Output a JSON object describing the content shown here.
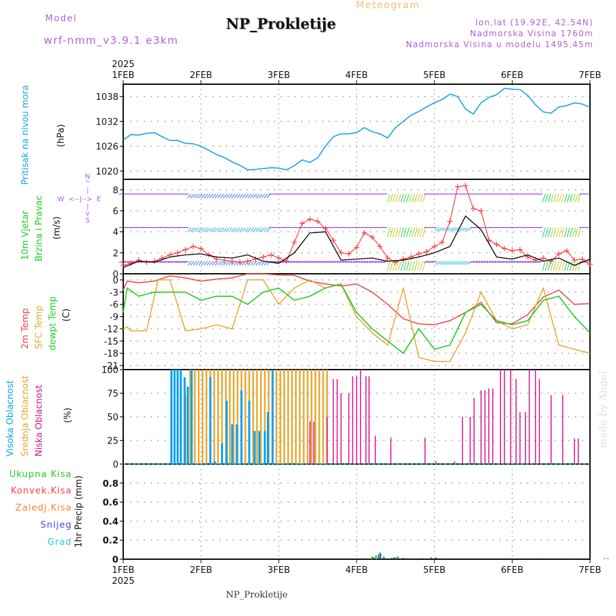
{
  "header": {
    "model_label": "Model",
    "model_name": "wrf-nmm_v3.9.1  e3km",
    "station_title": "NP_Prokletije",
    "meteogram_label": "Meteogram",
    "lonlat": "lon,lat (19.92E, 42.54N)",
    "elevation": "Nadmorska Visina 1760m",
    "model_elevation": "Nadmorska Visina u modelu 1495.45m",
    "watermark": "made by Angel",
    "footer_station": "NP_Prokletije"
  },
  "colors": {
    "pressure": "#1aa3ec",
    "wind_speed": "#ff4040",
    "wind_gust_line": "#000000",
    "temp2m": "#ee4444",
    "sfc_temp": "#e8a830",
    "dewpt": "#22cc22",
    "high_cloud": "#0aa0ee",
    "mid_cloud": "#e8a830",
    "low_cloud": "#dd1188",
    "total_precip": "#22cc22",
    "conv_precip": "#ff4040",
    "freezing_precip": "#ff8030",
    "snow": "#4040ff",
    "hail": "#22cccc",
    "purple_label": "#b25ee0"
  },
  "chart_data": [
    {
      "type": "line",
      "name": "sea-level-pressure",
      "title": "Pritisak na nivou mora",
      "ylabel": "(hPa)",
      "ylim": [
        1018,
        1041
      ],
      "yticks": [
        "1020",
        "1026",
        "1032",
        "1038"
      ],
      "ytick_values": [
        1020,
        1026,
        1032,
        1038
      ],
      "xlabel_top_year": "2025",
      "xticks": [
        "1FEB",
        "2FEB",
        "3FEB",
        "4FEB",
        "5FEB",
        "6FEB",
        "7FEB"
      ],
      "xlim_days": [
        0,
        6
      ],
      "grid": true,
      "series": [
        {
          "name": "Pritisak na nivou mora",
          "x": [
            0,
            0.1,
            0.2,
            0.3,
            0.4,
            0.5,
            0.6,
            0.7,
            0.8,
            0.9,
            1.0,
            1.1,
            1.2,
            1.3,
            1.4,
            1.5,
            1.6,
            1.7,
            1.8,
            1.9,
            2.0,
            2.1,
            2.2,
            2.3,
            2.4,
            2.5,
            2.6,
            2.7,
            2.8,
            2.9,
            3.0,
            3.1,
            3.2,
            3.3,
            3.4,
            3.5,
            3.6,
            3.7,
            3.8,
            3.9,
            4.0,
            4.1,
            4.2,
            4.3,
            4.4,
            4.5,
            4.6,
            4.7,
            4.8,
            4.9,
            5.0,
            5.1,
            5.2,
            5.3,
            5.4,
            5.5,
            5.6,
            5.7,
            5.8,
            5.9,
            6.0
          ],
          "values": [
            1027.5,
            1028.8,
            1028.7,
            1029.1,
            1029.3,
            1028.3,
            1027.4,
            1027.4,
            1026.7,
            1026.6,
            1026.0,
            1025.0,
            1024.0,
            1023.3,
            1022.2,
            1021.4,
            1020.3,
            1020.4,
            1020.6,
            1020.8,
            1020.7,
            1020.3,
            1021.3,
            1022.7,
            1022.1,
            1023.2,
            1026.0,
            1028.3,
            1029.0,
            1029.0,
            1029.3,
            1030.5,
            1029.5,
            1029.0,
            1028.0,
            1030.5,
            1032.0,
            1033.5,
            1034.4,
            1035.5,
            1036.5,
            1037.3,
            1038.6,
            1038.0,
            1035.0,
            1033.8,
            1036.5,
            1037.8,
            1038.5,
            1040.0,
            1039.8,
            1039.7,
            1038.3,
            1036.0,
            1034.3,
            1034.0,
            1035.5,
            1035.8,
            1036.5,
            1036.2,
            1035.4
          ]
        }
      ]
    },
    {
      "type": "line",
      "name": "wind",
      "title": "10m Vjetar Brzina i Pravac",
      "ylabel": "(m/s)",
      "ylim": [
        0,
        9
      ],
      "yticks": [
        "0",
        "2",
        "4",
        "6",
        "8"
      ],
      "ytick_values": [
        0,
        2,
        4,
        6,
        8
      ],
      "compass": {
        "n": "N",
        "s": "S",
        "w": "W",
        "e": "E"
      },
      "grid": true,
      "barb_rows_ms": [
        7.6,
        4.4,
        1.2
      ],
      "series": [
        {
          "name": "wind speed (+ markers)",
          "x": [
            0,
            0.1,
            0.2,
            0.3,
            0.4,
            0.5,
            0.6,
            0.7,
            0.8,
            0.9,
            1.0,
            1.1,
            1.2,
            1.3,
            1.4,
            1.5,
            1.6,
            1.7,
            1.8,
            1.9,
            2.0,
            2.1,
            2.2,
            2.3,
            2.4,
            2.5,
            2.6,
            2.7,
            2.8,
            2.9,
            3.0,
            3.1,
            3.2,
            3.3,
            3.4,
            3.5,
            3.6,
            3.7,
            3.8,
            3.9,
            4.0,
            4.1,
            4.2,
            4.3,
            4.4,
            4.5,
            4.6,
            4.7,
            4.8,
            4.9,
            5.0,
            5.1,
            5.2,
            5.3,
            5.4,
            5.5,
            5.6,
            5.7,
            5.8,
            5.9,
            6.0
          ],
          "values": [
            0.8,
            1.0,
            1.3,
            1.1,
            1.2,
            1.5,
            1.8,
            2.0,
            2.3,
            2.6,
            2.4,
            1.8,
            1.4,
            1.3,
            1.2,
            1.1,
            1.2,
            1.4,
            1.6,
            1.8,
            1.5,
            1.2,
            3.0,
            4.8,
            5.2,
            5.0,
            4.3,
            3.2,
            2.0,
            1.9,
            2.5,
            3.9,
            3.5,
            2.6,
            1.5,
            1.1,
            1.4,
            1.6,
            1.9,
            2.1,
            2.6,
            3.0,
            5.0,
            8.3,
            8.4,
            6.2,
            6.0,
            3.2,
            2.8,
            2.4,
            2.2,
            2.3,
            1.6,
            1.3,
            1.5,
            1.2,
            1.9,
            2.2,
            1.3,
            1.4,
            0.9
          ]
        },
        {
          "name": "gust/avg (black line)",
          "x": [
            0,
            0.2,
            0.4,
            0.6,
            0.8,
            1.0,
            1.2,
            1.4,
            1.6,
            1.8,
            2.0,
            2.2,
            2.4,
            2.6,
            2.8,
            3.0,
            3.2,
            3.4,
            3.6,
            3.8,
            4.0,
            4.2,
            4.4,
            4.6,
            4.8,
            5.0,
            5.2,
            5.4,
            5.6,
            5.8,
            6.0
          ],
          "values": [
            0.6,
            1.2,
            1.1,
            1.6,
            1.8,
            1.9,
            1.6,
            1.5,
            1.8,
            1.2,
            1.0,
            2.0,
            3.9,
            4.0,
            1.3,
            1.4,
            1.5,
            1.2,
            1.3,
            1.6,
            2.0,
            2.6,
            5.5,
            4.2,
            1.6,
            1.4,
            1.8,
            1.2,
            1.5,
            0.8,
            1.4
          ]
        }
      ]
    },
    {
      "type": "line",
      "name": "temperature",
      "title": "2m Temp / SFC Temp / dewpt Temp",
      "ylabel": "(C)",
      "ylim": [
        -22,
        1.5
      ],
      "yticks": [
        "0",
        "-3",
        "-6",
        "-9",
        "-12",
        "-15",
        "-18",
        "-21"
      ],
      "ytick_values": [
        0,
        -3,
        -6,
        -9,
        -12,
        -15,
        -18,
        -21
      ],
      "grid": true,
      "series": [
        {
          "name": "2m Temp",
          "x": [
            0,
            0.05,
            0.2,
            0.4,
            0.6,
            0.8,
            1.0,
            1.2,
            1.4,
            1.6,
            1.8,
            2.0,
            2.2,
            2.4,
            2.6,
            2.8,
            3.0,
            3.2,
            3.4,
            3.6,
            3.8,
            4.0,
            4.2,
            4.4,
            4.6,
            4.8,
            5.0,
            5.2,
            5.4,
            5.6,
            5.8,
            6.0
          ],
          "values": [
            -2.5,
            -0.3,
            -0.7,
            -0.3,
            1.0,
            0.5,
            -0.3,
            0.2,
            0.5,
            2.0,
            2.0,
            1.2,
            1.1,
            -0.3,
            -1.0,
            -1.5,
            -1.0,
            -3.0,
            -6.0,
            -9.5,
            -10.8,
            -11.0,
            -10.0,
            -8.0,
            -5.5,
            -10.5,
            -10.8,
            -8.5,
            -4.2,
            -2.5,
            -6.0,
            -5.8
          ]
        },
        {
          "name": "SFC Temp",
          "x": [
            0,
            0.05,
            0.1,
            0.3,
            0.45,
            0.6,
            0.8,
            1.0,
            1.2,
            1.4,
            1.6,
            1.8,
            2.0,
            2.2,
            2.4,
            2.6,
            2.8,
            3.0,
            3.2,
            3.4,
            3.6,
            3.8,
            4.0,
            4.2,
            4.4,
            4.6,
            4.8,
            5.0,
            5.2,
            5.4,
            5.6,
            5.8,
            6.0
          ],
          "values": [
            -12,
            -11.5,
            -12.5,
            -12.5,
            0,
            0,
            -12.5,
            -12,
            -11,
            -12,
            0,
            0,
            -6,
            -2,
            0,
            -2,
            -1,
            -9,
            -13,
            -16,
            -2,
            -19,
            -20,
            -20,
            -13,
            -3,
            -10,
            -12,
            -11,
            -2,
            -16,
            -17,
            -18
          ]
        },
        {
          "name": "dewpt Temp",
          "x": [
            0,
            0.05,
            0.2,
            0.4,
            0.6,
            0.8,
            1.0,
            1.2,
            1.4,
            1.6,
            1.8,
            2.0,
            2.2,
            2.4,
            2.6,
            2.8,
            3.0,
            3.2,
            3.4,
            3.6,
            3.8,
            4.0,
            4.2,
            4.4,
            4.6,
            4.8,
            5.0,
            5.2,
            5.4,
            5.6,
            5.8,
            6.0
          ],
          "values": [
            -8,
            -2,
            -4,
            -3,
            -3,
            -3,
            -5,
            -4,
            -4,
            -6,
            -3,
            -2,
            -5,
            -4,
            -2,
            -1,
            -8,
            -12,
            -15,
            -18,
            -12,
            -17,
            -16,
            -8,
            -6,
            -10,
            -11,
            -10,
            -5,
            -4,
            -9,
            -13
          ]
        }
      ]
    },
    {
      "type": "bar",
      "name": "cloud-cover",
      "title": "Visoka / Srednja / Niska Oblacnost",
      "ylabel": "(%)",
      "ylim": [
        0,
        100
      ],
      "yticks": [
        "0",
        "25",
        "50",
        "75",
        "100"
      ],
      "ytick_values": [
        0,
        25,
        50,
        75,
        100
      ],
      "grid": true,
      "series": [
        {
          "name": "Visoka Oblacnost",
          "x": [
            0.62,
            0.66,
            0.7,
            0.74,
            0.79,
            0.83,
            0.88,
            1.12,
            1.18,
            1.27,
            1.33,
            1.4,
            1.46,
            1.52,
            1.62,
            1.69,
            1.75,
            1.82,
            1.86,
            1.92
          ],
          "values": [
            100,
            100,
            100,
            100,
            92,
            82,
            100,
            92,
            3,
            22,
            67,
            42,
            42,
            78,
            67,
            35,
            35,
            35,
            55,
            100
          ]
        },
        {
          "name": "Srednja Oblacnost",
          "x": [
            0.8,
            0.86,
            0.92,
            0.97,
            1.02,
            1.07,
            1.12,
            1.17,
            1.22,
            1.27,
            1.32,
            1.37,
            1.42,
            1.47,
            1.52,
            1.57,
            1.62,
            1.67,
            1.72,
            1.77,
            1.82,
            1.87,
            1.92,
            1.97,
            2.02,
            2.07,
            2.12,
            2.17,
            2.22,
            2.27,
            2.32,
            2.37,
            2.42,
            2.47,
            2.52,
            2.57,
            2.62
          ],
          "values": [
            73,
            100,
            100,
            100,
            100,
            100,
            100,
            100,
            100,
            100,
            100,
            100,
            100,
            100,
            100,
            100,
            100,
            100,
            100,
            100,
            100,
            100,
            100,
            100,
            100,
            100,
            100,
            100,
            100,
            100,
            100,
            100,
            100,
            100,
            100,
            100,
            100
          ]
        },
        {
          "name": "Niska Oblacnost",
          "x": [
            2.4,
            2.45,
            2.62,
            2.7,
            2.75,
            2.8,
            2.9,
            2.95,
            3.0,
            3.05,
            3.12,
            3.16,
            3.24,
            3.44,
            3.88,
            4.02,
            4.26,
            4.36,
            4.46,
            4.51,
            4.6,
            4.65,
            4.7,
            4.75,
            4.85,
            4.9,
            4.98,
            5.05,
            5.1,
            5.17,
            5.22,
            5.3,
            5.35,
            5.5,
            5.65,
            5.8,
            5.85
          ],
          "values": [
            45,
            45,
            50,
            90,
            90,
            75,
            75,
            93,
            93,
            100,
            93,
            93,
            30,
            28,
            28,
            3,
            3,
            50,
            50,
            70,
            78,
            78,
            80,
            80,
            100,
            100,
            100,
            90,
            55,
            55,
            100,
            100,
            90,
            73,
            73,
            27,
            27
          ]
        }
      ]
    },
    {
      "type": "bar",
      "name": "precipitation",
      "title": "1hr Precip",
      "ylabel": "1hr Precip (mm)",
      "ylim": [
        0,
        1.0
      ],
      "yticks": [
        "0",
        "0.2",
        "0.4",
        "0.6",
        "0.8"
      ],
      "ytick_values": [
        0,
        0.2,
        0.4,
        0.6,
        0.8
      ],
      "xticks_bottom": [
        "1FEB",
        "2FEB",
        "3FEB",
        "4FEB",
        "5FEB",
        "6FEB",
        "7FEB"
      ],
      "xlabel_bottom_year": "2025",
      "grid": true,
      "legend": [
        "Ukupna Kisa",
        "Konvek.Kisa",
        "Zaledj.Kisa",
        "Snijeg",
        "Grad"
      ],
      "series": [
        {
          "name": "Ukupna Kisa",
          "x": [
            3.2,
            3.25,
            3.3,
            3.35,
            3.48,
            3.53,
            3.6,
            3.84,
            3.96,
            4.02,
            5.38,
            5.73,
            6.19,
            6.23
          ],
          "values": [
            0.03,
            0.04,
            0.07,
            0.03,
            0.02,
            0.03,
            0.015,
            0.01,
            0.02,
            0.02,
            0.01,
            0.01,
            0.01,
            0.01
          ]
        },
        {
          "name": "Snijeg",
          "x": [
            3.22,
            3.28,
            3.31,
            3.45,
            3.5,
            3.56
          ],
          "values": [
            0.02,
            0.05,
            0.06,
            0.015,
            0.02,
            0.01
          ]
        }
      ]
    }
  ]
}
